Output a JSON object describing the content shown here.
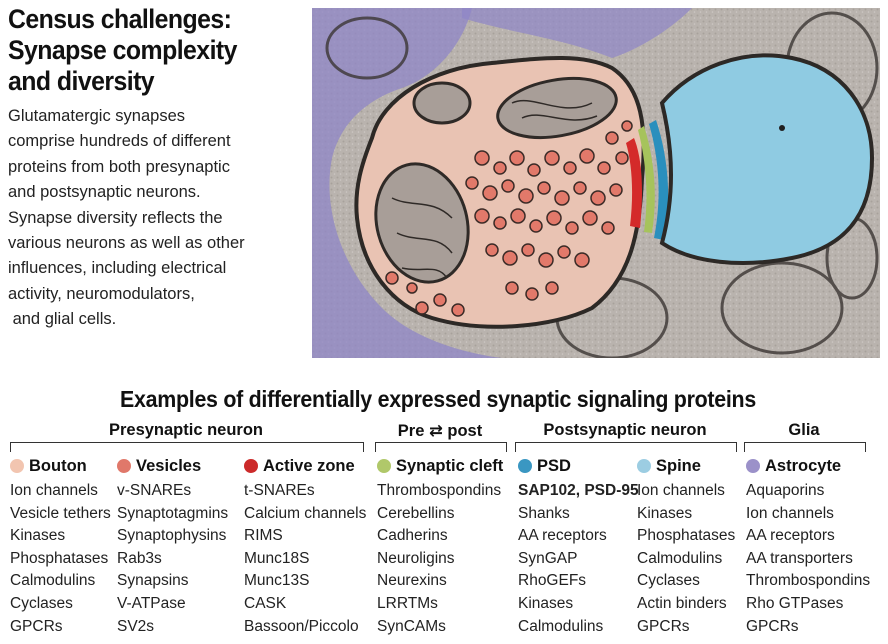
{
  "header": {
    "title_lines": [
      "Census challenges:",
      "Synapse complexity",
      "and diversity"
    ],
    "intro_lines": [
      "Glutamatergic synapses",
      "comprise hundreds of different",
      "proteins from both presynaptic",
      "and postsynaptic neurons.",
      "Synapse diversity reflects the",
      "various neurons as well as other",
      "influences, including electrical",
      "activity, neuromodulators,",
      " and glial cells."
    ]
  },
  "figure": {
    "image": "electron-micrograph-synapse"
  },
  "section": {
    "title": "Examples of differentially expressed synaptic signaling proteins",
    "groups": [
      "Presynaptic neuron",
      "Pre ⇄ post",
      "Postsynaptic neuron",
      "Glia"
    ]
  },
  "columns": [
    {
      "heading": "Bouton",
      "color": "#f2c5b0",
      "items": [
        "Ion channels",
        "Vesicle tethers",
        "Kinases",
        "Phosphatases",
        "Calmodulins",
        "Cyclases",
        "GPCRs"
      ]
    },
    {
      "heading": "Vesicles",
      "color": "#e0786a",
      "items": [
        "v-SNAREs",
        "Synaptotagmins",
        "Synaptophysins",
        "Rab3s",
        "Synapsins",
        "V-ATPase",
        "SV2s"
      ]
    },
    {
      "heading": "Active zone",
      "color": "#cc2a2a",
      "items": [
        "t-SNAREs",
        "Calcium channels",
        "RIMS",
        "Munc18S",
        "Munc13S",
        "CASK",
        "Bassoon/Piccolo"
      ]
    },
    {
      "heading": "Synaptic cleft",
      "color": "#b0c86a",
      "items": [
        "Thrombospondins",
        "Cerebellins",
        "Cadherins",
        "Neuroligins",
        "Neurexins",
        "LRRTMs",
        "SynCAMs"
      ]
    },
    {
      "heading": "PSD",
      "color": "#3a97c2",
      "items": [
        "SAP102, PSD-95",
        "Shanks",
        "AA receptors",
        "SynGAP",
        "RhoGEFs",
        "Kinases",
        "Calmodulins"
      ]
    },
    {
      "heading": "Spine",
      "color": "#9ccde2",
      "items": [
        "Ion channels",
        "Kinases",
        "Phosphatases",
        "Calmodulins",
        "Cyclases",
        "Actin binders",
        "GPCRs"
      ]
    },
    {
      "heading": "Astrocyte",
      "color": "#9b91c9",
      "items": [
        "Aquaporins",
        "Ion channels",
        "AA receptors",
        "AA transporters",
        "Thrombospondins",
        "Rho GTPases",
        "GPCRs"
      ]
    }
  ]
}
